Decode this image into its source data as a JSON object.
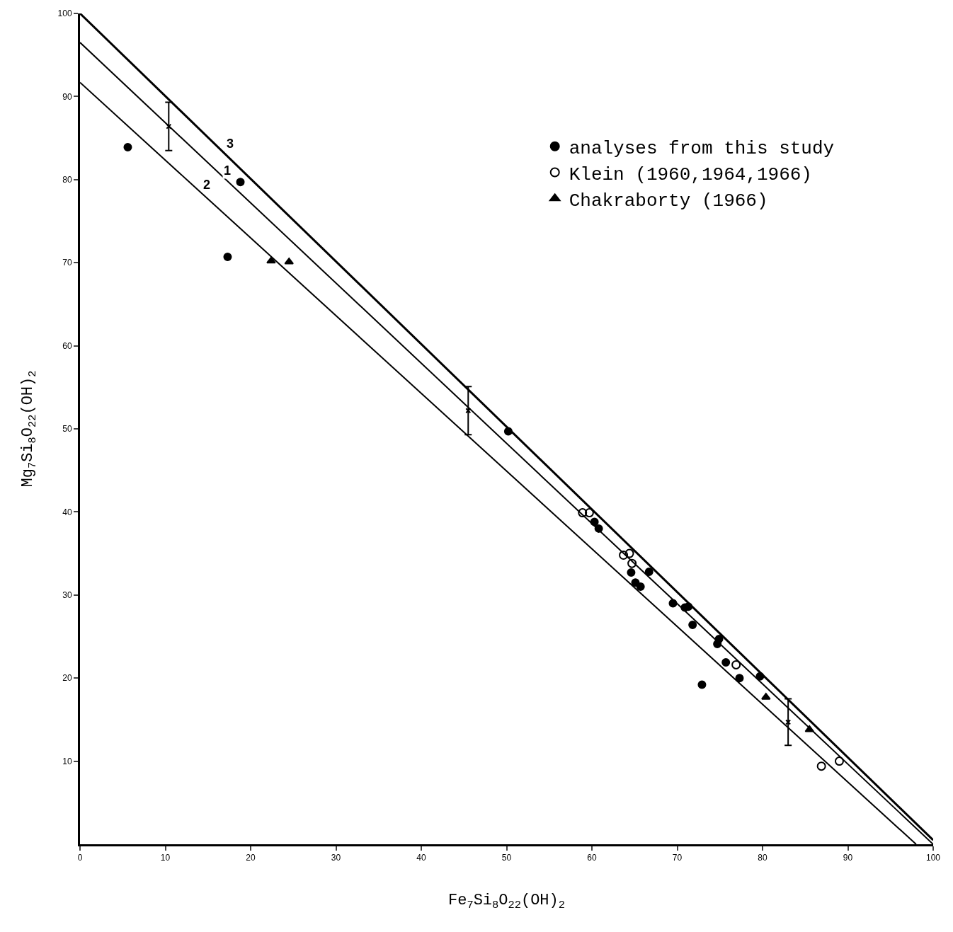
{
  "chart_data": {
    "type": "scatter",
    "xlabel": "Fe$_{7}$Si$_{8}$O$_{22}$(OH)$_{2}$",
    "ylabel": "Mg$_{7}$Si$_{8}$O$_{22}$(OH)$_{2}$",
    "xlim": [
      0,
      100
    ],
    "ylim": [
      0,
      100
    ],
    "xticks": [
      0,
      10,
      20,
      30,
      40,
      50,
      60,
      70,
      80,
      90,
      100
    ],
    "yticks": [
      10,
      20,
      30,
      40,
      50,
      60,
      70,
      80,
      90,
      100
    ],
    "legend": "top right",
    "series": [
      {
        "name": "analyses from this study",
        "marker": "circle",
        "color": "#000000",
        "x": [
          5.6,
          18.8,
          17.3,
          50.2,
          60.3,
          60.8,
          64.6,
          66.7,
          65.1,
          65.7,
          69.5,
          70.9,
          71.3,
          71.8,
          74.9,
          74.7,
          75.7,
          77.3,
          79.7,
          72.9
        ],
        "values": [
          83.9,
          79.7,
          70.7,
          49.7,
          38.8,
          38.0,
          32.7,
          32.8,
          31.5,
          31.0,
          29.0,
          28.5,
          28.6,
          26.4,
          24.7,
          24.1,
          21.9,
          20.0,
          20.2,
          19.2
        ]
      },
      {
        "name": "Klein (1960,1964,1966)",
        "marker": "circle",
        "color": "#000000",
        "x": [
          58.9,
          59.7,
          63.7,
          64.4,
          64.7,
          76.9,
          86.9,
          89.0
        ],
        "values": [
          39.9,
          39.9,
          34.8,
          35.0,
          33.8,
          21.6,
          9.4,
          10.0
        ]
      },
      {
        "name": "Chakraborty (1966)",
        "marker": "triangle",
        "color": "#000000",
        "x": [
          22.4,
          24.5,
          80.4,
          85.5
        ],
        "values": [
          70.2,
          70.1,
          17.7,
          13.8
        ]
      },
      {
        "type": "line",
        "color": "#000000",
        "x": [
          0,
          100
        ],
        "values": [
          100,
          0.5
        ]
      },
      {
        "type": "line",
        "color": "#000000",
        "x": [
          0,
          100
        ],
        "values": [
          96.5,
          0
        ]
      },
      {
        "type": "line",
        "color": "#000000",
        "x": [
          0,
          98
        ],
        "values": [
          91.7,
          0
        ]
      },
      {
        "marker": "cross",
        "color": "#000000",
        "x": [
          10.4,
          45.5,
          83.0
        ],
        "values": [
          86.4,
          52.2,
          14.7
        ],
        "errors": [
          [
            83.5,
            89.3
          ],
          [
            49.3,
            55.1
          ],
          [
            11.9,
            17.5
          ]
        ]
      }
    ],
    "annotations": [
      {
        "text": "3",
        "x": 16.5,
        "y": 84.3
      },
      {
        "text": "1",
        "x": 16.2,
        "y": 81.1
      },
      {
        "text": "2",
        "x": 13.8,
        "y": 79.4
      }
    ]
  }
}
